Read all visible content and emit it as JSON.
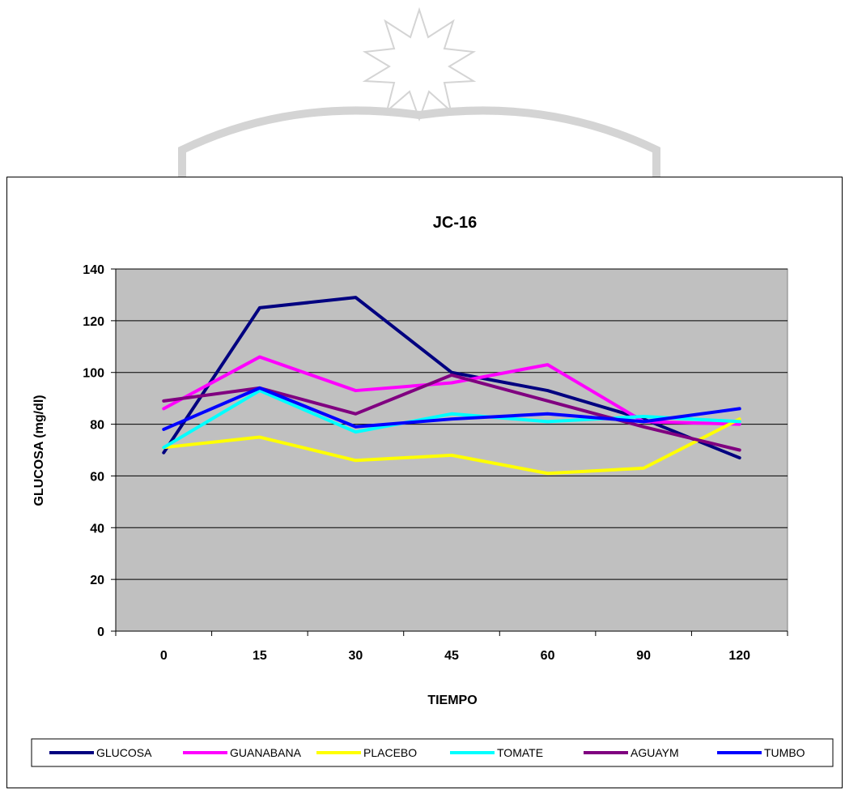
{
  "chart_data": {
    "type": "line",
    "title": "JC-16",
    "xlabel": "TIEMPO",
    "ylabel": "GLUCOSA (mg/dl)",
    "categories": [
      "0",
      "15",
      "30",
      "45",
      "60",
      "90",
      "120"
    ],
    "ylim": [
      0,
      140
    ],
    "yticks": [
      0,
      20,
      40,
      60,
      80,
      100,
      120,
      140
    ],
    "grid": true,
    "legend_position": "bottom",
    "plot_background": "#C0C0C0",
    "series": [
      {
        "name": "GLUCOSA",
        "color": "#000080",
        "values": [
          69,
          125,
          129,
          100,
          93,
          82,
          67
        ]
      },
      {
        "name": "GUANABANA",
        "color": "#FF00FF",
        "values": [
          86,
          106,
          93,
          96,
          103,
          81,
          80
        ]
      },
      {
        "name": "PLACEBO",
        "color": "#FFFF00",
        "values": [
          71,
          75,
          66,
          68,
          61,
          63,
          82
        ]
      },
      {
        "name": "TOMATE",
        "color": "#00FFFF",
        "values": [
          71,
          93,
          77,
          84,
          81,
          83,
          81
        ]
      },
      {
        "name": "AGUAYM",
        "color": "#800080",
        "values": [
          89,
          94,
          84,
          99,
          89,
          79,
          70
        ]
      },
      {
        "name": "TUMBO",
        "color": "#0000FF",
        "values": [
          78,
          94,
          79,
          82,
          84,
          81,
          86
        ]
      }
    ]
  }
}
